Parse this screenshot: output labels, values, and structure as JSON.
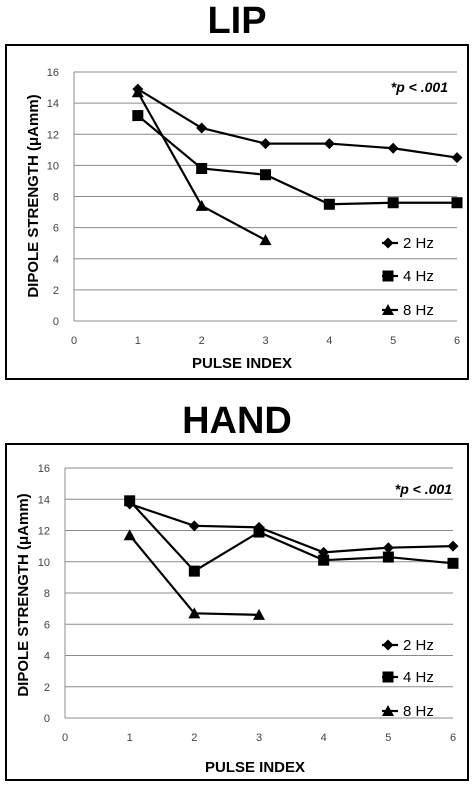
{
  "chart_data": [
    {
      "type": "line",
      "title": "LIP",
      "xlabel": "PULSE INDEX",
      "ylabel": "DIPOLE STRENGTH (μAmm)",
      "xlim": [
        0,
        6
      ],
      "ylim": [
        0,
        16
      ],
      "xticks": [
        "0",
        "1",
        "2",
        "3",
        "4",
        "5",
        "6"
      ],
      "yticks": [
        "0",
        "2",
        "4",
        "6",
        "8",
        "10",
        "12",
        "14",
        "16"
      ],
      "grid": "horizontal",
      "legend": "bottom-right",
      "annotation": "*p < .001",
      "series": [
        {
          "name": "2 Hz",
          "marker": "diamond",
          "x": [
            1,
            2,
            3,
            4,
            5,
            6
          ],
          "values": [
            14.9,
            12.4,
            11.4,
            11.4,
            11.1,
            10.5
          ]
        },
        {
          "name": "4 Hz",
          "marker": "square",
          "x": [
            1,
            2,
            3,
            4,
            5,
            6
          ],
          "values": [
            13.2,
            9.8,
            9.4,
            7.5,
            7.6,
            7.6
          ]
        },
        {
          "name": "8 Hz",
          "marker": "triangle",
          "x": [
            1,
            2,
            3
          ],
          "values": [
            14.7,
            7.4,
            5.2
          ]
        }
      ]
    },
    {
      "type": "line",
      "title": "HAND",
      "xlabel": "PULSE INDEX",
      "ylabel": "DIPOLE STRENGTH (μAmm)",
      "xlim": [
        0,
        6
      ],
      "ylim": [
        0,
        16
      ],
      "xticks": [
        "0",
        "1",
        "2",
        "3",
        "4",
        "5",
        "6"
      ],
      "yticks": [
        "0",
        "2",
        "4",
        "6",
        "8",
        "10",
        "12",
        "14",
        "16"
      ],
      "grid": "horizontal",
      "legend": "bottom-right",
      "annotation": "*p < .001",
      "series": [
        {
          "name": "2 Hz",
          "marker": "diamond",
          "x": [
            1,
            2,
            3,
            4,
            5,
            6
          ],
          "values": [
            13.7,
            12.3,
            12.2,
            10.6,
            10.9,
            11.0
          ]
        },
        {
          "name": "4 Hz",
          "marker": "square",
          "x": [
            1,
            2,
            3,
            4,
            5,
            6
          ],
          "values": [
            13.9,
            9.4,
            11.9,
            10.1,
            10.3,
            9.9
          ]
        },
        {
          "name": "8 Hz",
          "marker": "triangle",
          "x": [
            1,
            2,
            3
          ],
          "values": [
            11.7,
            6.7,
            6.6
          ]
        }
      ]
    }
  ]
}
